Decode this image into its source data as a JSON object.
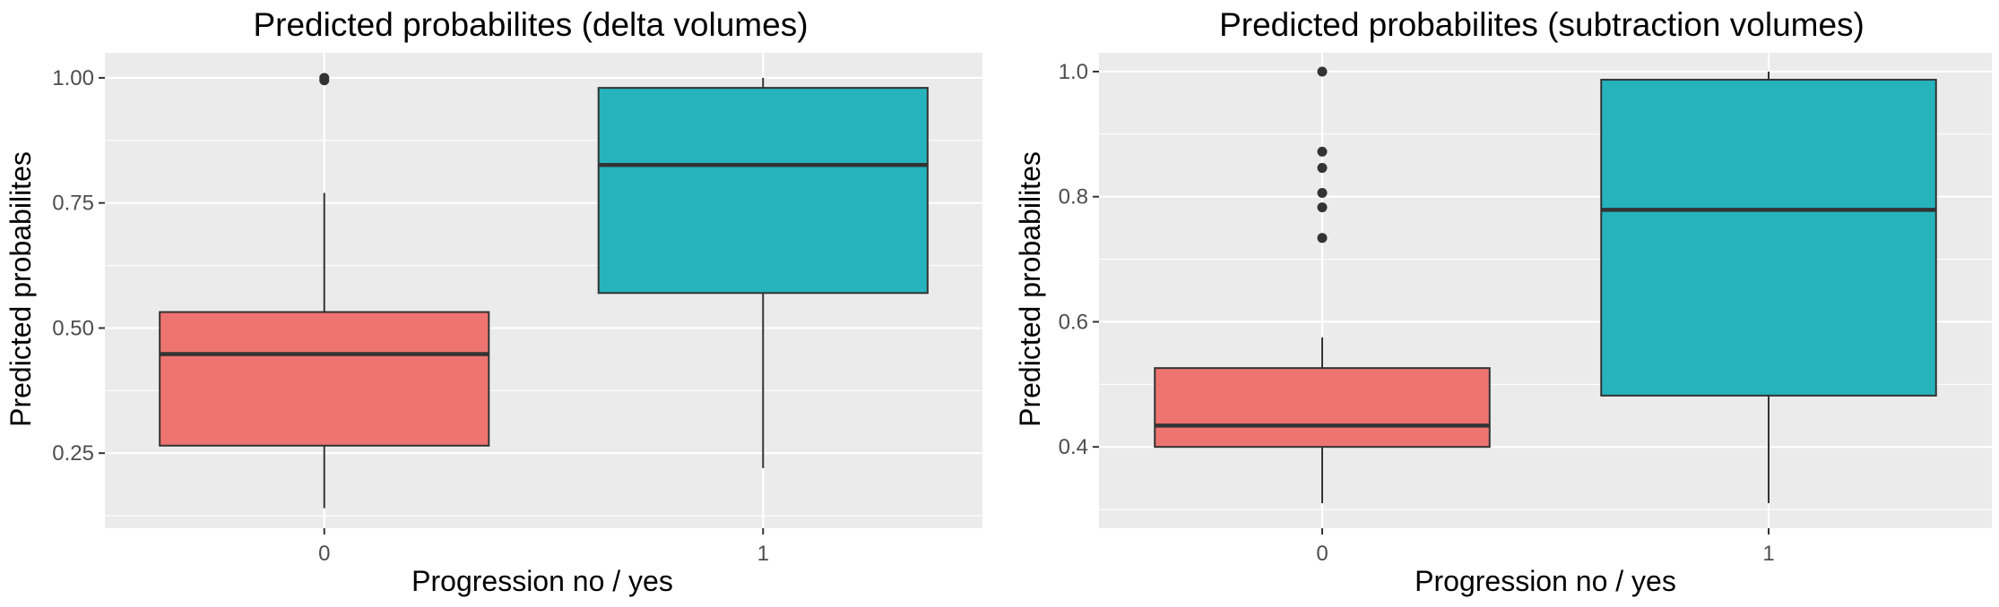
{
  "chart_data": [
    {
      "type": "box",
      "title": "Predicted probabilites (delta volumes)",
      "xlabel": "Progression no / yes",
      "ylabel": "Predicted probabilites",
      "categories": [
        "0",
        "1"
      ],
      "yticks": [
        "0.25",
        "0.50",
        "0.75",
        "1.00"
      ],
      "ylim": [
        0.1,
        1.05
      ],
      "grid": true,
      "colors": [
        "#ED7470",
        "#26B3BC"
      ],
      "boxes": [
        {
          "category": "0",
          "min": 0.14,
          "q1": 0.265,
          "median": 0.448,
          "q3": 0.532,
          "max": 0.77,
          "outliers": [
            0.995,
            1.0
          ]
        },
        {
          "category": "1",
          "min": 0.22,
          "q1": 0.57,
          "median": 0.826,
          "q3": 0.98,
          "max": 1.0,
          "outliers": []
        }
      ]
    },
    {
      "type": "box",
      "title": "Predicted probabilites (subtraction volumes)",
      "xlabel": "Progression no / yes",
      "ylabel": "Predicted probabilites",
      "categories": [
        "0",
        "1"
      ],
      "yticks": [
        "0.4",
        "0.6",
        "0.8",
        "1.0"
      ],
      "ylim": [
        0.27,
        1.03
      ],
      "grid": true,
      "colors": [
        "#ED7470",
        "#26B3BC"
      ],
      "boxes": [
        {
          "category": "0",
          "min": 0.31,
          "q1": 0.4,
          "median": 0.434,
          "q3": 0.526,
          "max": 0.575,
          "outliers": [
            0.734,
            0.783,
            0.806,
            0.846,
            0.872,
            1.0
          ]
        },
        {
          "category": "1",
          "min": 0.31,
          "q1": 0.482,
          "median": 0.779,
          "q3": 0.987,
          "max": 1.0,
          "outliers": []
        }
      ]
    }
  ]
}
